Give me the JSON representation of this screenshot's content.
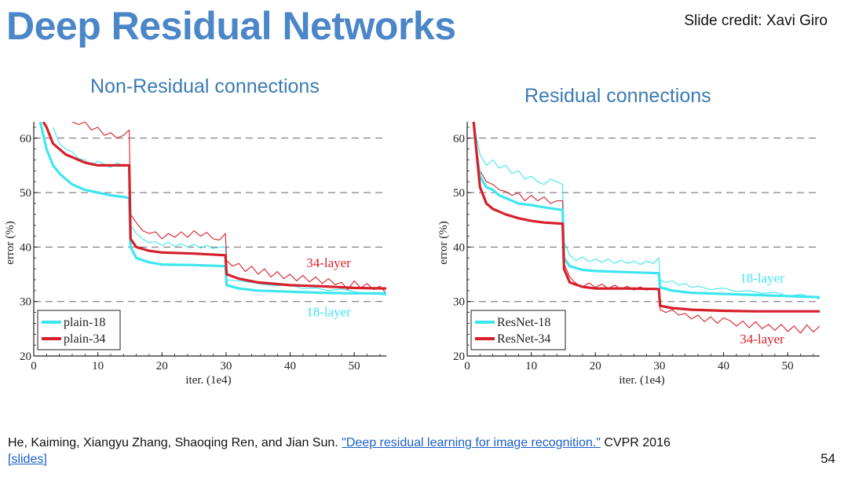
{
  "slide": {
    "title": "Deep Residual Networks",
    "credit": "Slide credit: Xavi Giro",
    "page_number": "54"
  },
  "citation": {
    "text": "He, Kaiming, Xiangyu Zhang, Shaoqing Ren, and Jian Sun. ",
    "link_text": "\"Deep residual learning for image recognition.\"",
    "venue": " CVPR 2016",
    "slides_link": "[slides]"
  },
  "colors": {
    "title": "#4a86c8",
    "cyan": "#3ee6f0",
    "red": "#d6202c",
    "grid": "#666666"
  },
  "chart_data": [
    {
      "type": "line",
      "title": "Non-Residual connections",
      "xlabel": "iter. (1e4)",
      "ylabel": "error (%)",
      "xlim": [
        0,
        55
      ],
      "ylim": [
        20,
        63
      ],
      "xticks": [
        0,
        10,
        20,
        30,
        40,
        50
      ],
      "yticks": [
        20,
        30,
        40,
        50,
        60
      ],
      "gridlines_y": [
        30,
        40,
        50,
        60
      ],
      "legend": [
        "plain-18",
        "plain-34"
      ],
      "legend_position": "bottom-left",
      "annotations": [
        {
          "text": "34-layer",
          "x": 46,
          "y": 36.3,
          "color": "red"
        },
        {
          "text": "18-layer",
          "x": 46,
          "y": 27.3,
          "color": "cyan"
        }
      ],
      "series": [
        {
          "name": "plain-18",
          "color": "cyan",
          "kind": "val",
          "x": [
            1,
            2,
            3,
            4,
            5,
            6,
            8,
            10,
            12,
            14,
            14.9,
            15.1,
            16,
            18,
            20,
            25,
            29.9,
            30.1,
            32,
            35,
            40,
            45,
            50,
            55
          ],
          "y": [
            63,
            58,
            55,
            53.5,
            52.5,
            51.5,
            50.5,
            50,
            49.5,
            49.2,
            49,
            40,
            38,
            37.2,
            36.8,
            36.7,
            36.5,
            33,
            32.4,
            32,
            31.8,
            31.6,
            31.5,
            31.5
          ]
        },
        {
          "name": "plain-34",
          "color": "red",
          "kind": "val",
          "x": [
            1.5,
            2,
            3,
            4,
            5,
            6,
            8,
            10,
            12,
            14,
            14.9,
            15.1,
            16,
            18,
            20,
            25,
            29.9,
            30.1,
            32,
            35,
            40,
            45,
            50,
            55
          ],
          "y": [
            63,
            62,
            59,
            58,
            57,
            56.5,
            55.5,
            55,
            55,
            55,
            55,
            41.5,
            40,
            39.3,
            39,
            38.8,
            38.5,
            35,
            34.2,
            33.5,
            33,
            32.8,
            32.5,
            32.4
          ]
        },
        {
          "name": "plain-18-train",
          "color": "cyan",
          "kind": "train",
          "x": [
            3,
            4,
            5,
            6,
            7,
            8,
            9,
            10,
            11,
            12,
            13,
            14,
            14.9,
            15.1,
            16,
            17,
            18,
            19,
            20,
            21,
            22,
            23,
            24,
            25,
            26,
            27,
            28,
            29,
            29.9,
            30.1,
            32,
            34,
            36,
            38,
            40,
            42,
            44,
            46,
            48,
            50,
            52,
            55
          ],
          "y": [
            62,
            59,
            58,
            57.5,
            56.2,
            56,
            55,
            55.8,
            55.2,
            54.6,
            55.5,
            54.8,
            55,
            44,
            42.5,
            41.5,
            40.8,
            41,
            40.3,
            40.9,
            40.1,
            40.6,
            40,
            40.5,
            39.8,
            40.3,
            39.7,
            40,
            40,
            34,
            33.8,
            33.5,
            33.1,
            32.9,
            33,
            32.4,
            32.5,
            32,
            32.3,
            31.8,
            31.5,
            31.2
          ]
        },
        {
          "name": "plain-34-train",
          "color": "red",
          "kind": "train",
          "x": [
            6,
            7,
            8,
            9,
            10,
            11,
            12,
            13,
            14,
            14.9,
            15.1,
            16,
            17,
            18,
            19,
            20,
            21,
            22,
            23,
            24,
            25,
            26,
            27,
            28,
            29,
            29.9,
            30.1,
            31,
            32,
            33,
            34,
            35,
            36,
            37,
            38,
            39,
            40,
            41,
            42,
            43,
            44,
            45,
            46,
            47,
            48,
            49,
            50,
            51,
            52,
            53,
            54,
            55
          ],
          "y": [
            63,
            62.5,
            63,
            61.5,
            62,
            60.5,
            61,
            60,
            60.5,
            61.5,
            46,
            44.5,
            43,
            42.5,
            42.8,
            41.5,
            42.5,
            41.8,
            42.8,
            41.8,
            43,
            42,
            42.7,
            41.5,
            41.3,
            42.5,
            37.5,
            36.5,
            37,
            35.5,
            36.5,
            35,
            36,
            34.5,
            35.5,
            34.2,
            35,
            33.8,
            34.8,
            33.6,
            34.5,
            33.3,
            34.2,
            33.1,
            33.5,
            32.2,
            33.8,
            32.5,
            33.3,
            32.2,
            32.8,
            31.5
          ]
        }
      ]
    },
    {
      "type": "line",
      "title": "Residual connections",
      "xlabel": "iter. (1e4)",
      "ylabel": "error (%)",
      "xlim": [
        0,
        55
      ],
      "ylim": [
        20,
        63
      ],
      "xticks": [
        0,
        10,
        20,
        30,
        40,
        50
      ],
      "yticks": [
        20,
        30,
        40,
        50,
        60
      ],
      "gridlines_y": [
        30,
        40,
        50,
        60
      ],
      "legend": [
        "ResNet-18",
        "ResNet-34"
      ],
      "legend_position": "bottom-left",
      "annotations": [
        {
          "text": "18-layer",
          "x": 46,
          "y": 33.5,
          "color": "cyan"
        },
        {
          "text": "34-layer",
          "x": 46,
          "y": 22.3,
          "color": "red"
        }
      ],
      "series": [
        {
          "name": "ResNet-18",
          "color": "cyan",
          "kind": "val",
          "x": [
            1,
            1.5,
            2,
            3,
            4,
            5,
            6,
            8,
            10,
            12,
            14.9,
            15.1,
            16,
            18,
            20,
            25,
            29.9,
            30.1,
            32,
            35,
            40,
            45,
            50,
            55
          ],
          "y": [
            63,
            57,
            53,
            51,
            50.5,
            49.5,
            49,
            48,
            47.7,
            47.3,
            46.8,
            38,
            36.5,
            35.8,
            35.6,
            35.4,
            35.2,
            32.6,
            32,
            31.6,
            31.4,
            31.2,
            31,
            30.8
          ]
        },
        {
          "name": "ResNet-34",
          "color": "red",
          "kind": "val",
          "x": [
            1,
            1.5,
            2,
            3,
            4,
            5,
            6,
            8,
            10,
            12,
            14.9,
            15.1,
            16,
            18,
            20,
            25,
            29.9,
            30.1,
            32,
            35,
            40,
            45,
            50,
            55
          ],
          "y": [
            63,
            57,
            51,
            48,
            47,
            46.5,
            46,
            45.3,
            44.8,
            44.5,
            44.3,
            36,
            33.5,
            32.7,
            32.4,
            32.4,
            32.3,
            29.2,
            28.8,
            28.5,
            28.3,
            28.2,
            28.2,
            28.2
          ]
        },
        {
          "name": "ResNet-18-train",
          "color": "cyan",
          "kind": "train",
          "x": [
            1,
            1.5,
            2,
            3,
            4,
            5,
            6,
            7,
            8,
            9,
            10,
            11,
            12,
            13,
            14.9,
            15.1,
            16,
            17,
            18,
            19,
            20,
            21,
            22,
            23,
            24,
            25,
            26,
            27,
            28,
            29,
            29.9,
            30.1,
            31,
            32,
            33,
            34,
            35,
            36,
            38,
            40,
            42,
            44,
            46,
            48,
            50,
            52,
            55
          ],
          "y": [
            63,
            60,
            57,
            55,
            56,
            54.5,
            55,
            53.5,
            54,
            52.5,
            53,
            52,
            51.5,
            52.5,
            51.5,
            41,
            38.5,
            37.5,
            38.2,
            37.3,
            37.8,
            37.2,
            37.8,
            37,
            37.6,
            37,
            37.4,
            36.8,
            37.4,
            37,
            38,
            34,
            33.5,
            33.8,
            33,
            33.3,
            32.6,
            32.8,
            32.2,
            32.5,
            31.8,
            32,
            31.5,
            31.7,
            31,
            31.3,
            30.5
          ]
        },
        {
          "name": "ResNet-34-train",
          "color": "red",
          "kind": "train",
          "x": [
            1,
            1.5,
            2,
            3,
            4,
            5,
            6,
            7,
            8,
            9,
            10,
            11,
            12,
            13,
            14,
            14.9,
            15.1,
            16,
            17,
            18,
            19,
            20,
            21,
            22,
            23,
            24,
            25,
            26,
            27,
            28,
            29,
            29.9,
            30.1,
            31,
            32,
            33,
            34,
            35,
            36,
            37,
            38,
            39,
            40,
            41,
            42,
            43,
            44,
            45,
            46,
            47,
            48,
            49,
            50,
            51,
            52,
            53,
            54,
            55
          ],
          "y": [
            63,
            58,
            54,
            52,
            51.5,
            50.5,
            50.2,
            49.5,
            50,
            48.5,
            49.5,
            48.5,
            49.2,
            48,
            48.5,
            48.5,
            37,
            34.5,
            33.3,
            32.7,
            33.4,
            32.6,
            33.2,
            32.4,
            33,
            32.3,
            32.8,
            32.1,
            32.7,
            32.1,
            32.5,
            32.3,
            28.5,
            28,
            28.5,
            27.5,
            27.8,
            26.8,
            27.5,
            26.3,
            27.2,
            26,
            27,
            26.5,
            25.5,
            26.4,
            25.2,
            26.3,
            25,
            25.8,
            24.7,
            25.8,
            24.5,
            25.5,
            24.2,
            25.7,
            24.4,
            25.5
          ]
        }
      ]
    }
  ]
}
